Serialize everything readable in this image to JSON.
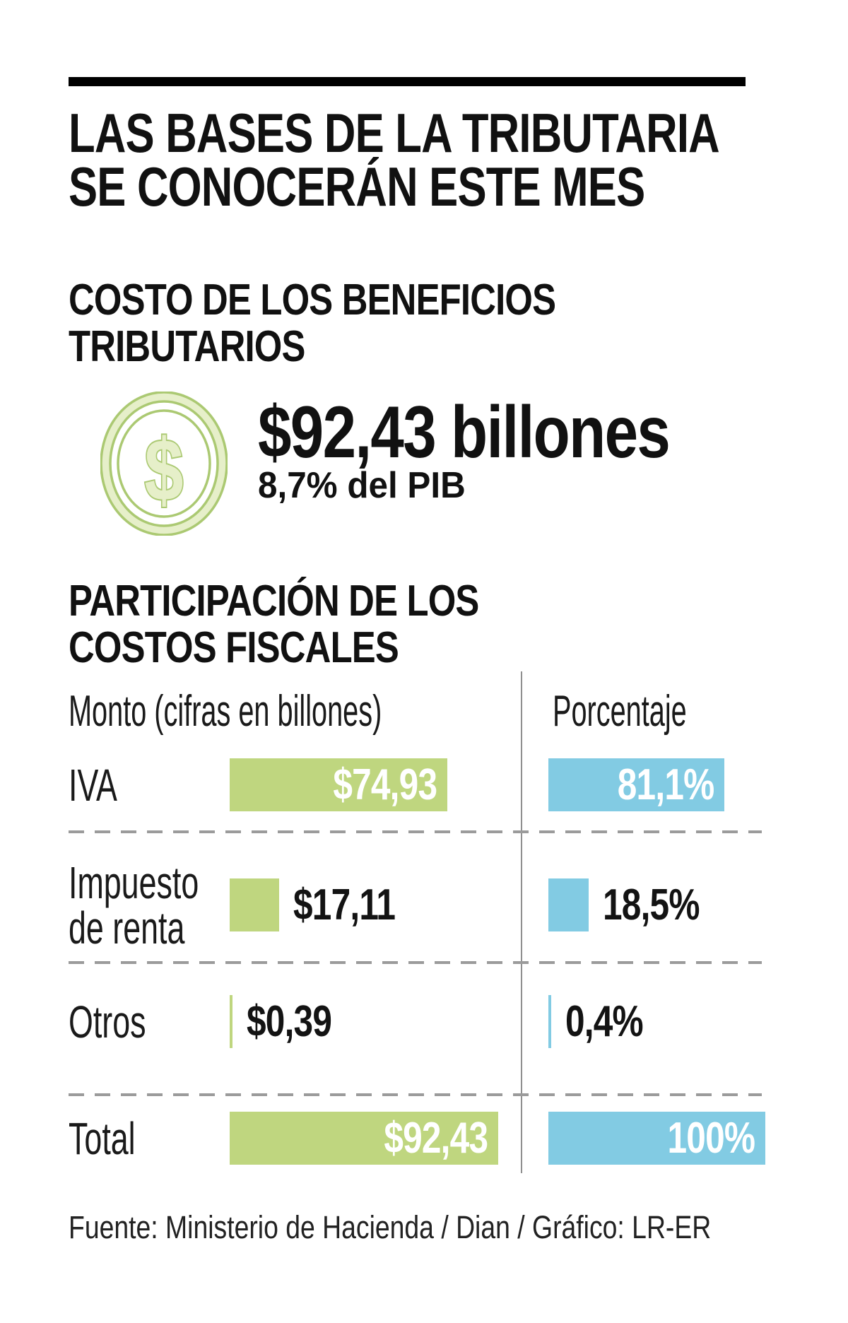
{
  "page": {
    "background": "#ffffff"
  },
  "colors": {
    "top_rule": "#000000",
    "money_bar": "#bfd67f",
    "percent_bar": "#82cbe3",
    "icon_green": "#abc972",
    "icon_green_light": "#e6efc9",
    "dashed_separator": "#9b9b9b",
    "column_divider": "#8f8f8f",
    "text": "#131313",
    "bar_inner_text": "#ffffff"
  },
  "header": {
    "title_line1": "LAS BASES DE LA TRIBUTARIA",
    "title_line2": "SE CONOCERÁN ESTE MES"
  },
  "cost_section": {
    "heading_line1": "COSTO DE LOS BENEFICIOS",
    "heading_line2": "TRIBUTARIOS",
    "icon": "dollar-coin-icon",
    "amount": "$92,43 billones",
    "share_of_gdp": "8,7% del PIB"
  },
  "participation_section": {
    "heading_line1": "PARTICIPACIÓN DE LOS",
    "heading_line2": "COSTOS FISCALES",
    "column_left": "Monto (cifras en billones)",
    "column_right": "Porcentaje"
  },
  "chart_data": {
    "type": "bar",
    "orientation": "horizontal",
    "title": "Participación de los costos fiscales",
    "categories": [
      "IVA",
      "Impuesto de renta",
      "Otros",
      "Total"
    ],
    "series": [
      {
        "name": "Monto (cifras en billones)",
        "unit": "billones de pesos",
        "color": "#bfd67f",
        "values": [
          74.93,
          17.11,
          0.39,
          92.43
        ],
        "labels": [
          "$74,93",
          "$17,11",
          "$0,39",
          "$92,43"
        ],
        "label_position": [
          "inside",
          "outside",
          "outside",
          "inside"
        ],
        "xlim": [
          0,
          92.43
        ]
      },
      {
        "name": "Porcentaje",
        "unit": "%",
        "color": "#82cbe3",
        "values": [
          81.1,
          18.5,
          0.4,
          100
        ],
        "labels": [
          "81,1%",
          "18,5%",
          "0,4%",
          "100%"
        ],
        "label_position": [
          "inside",
          "outside",
          "outside",
          "inside"
        ],
        "xlim": [
          0,
          100
        ]
      }
    ],
    "grid": "off",
    "legend": "none"
  },
  "footer": {
    "source": "Fuente: Ministerio de Hacienda / Dian / Gráfico: LR-ER"
  }
}
